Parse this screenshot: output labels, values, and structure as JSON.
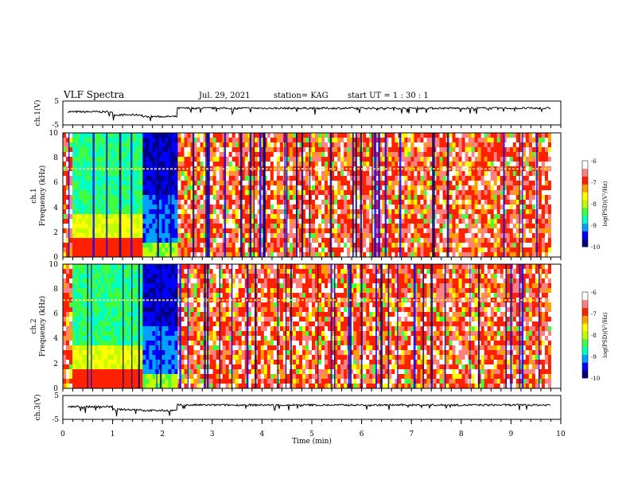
{
  "header": {
    "title": "VLF Spectra",
    "date": "Jul. 29, 2021",
    "station": "station= KAG",
    "start": "start UT =  1 : 30 : 1"
  },
  "chart_data": [
    {
      "type": "line",
      "ylabel": "ch.1(V)",
      "ylim": [
        -5,
        5
      ],
      "y_ticks": [
        "5",
        "-5"
      ],
      "xlim": [
        0,
        10
      ],
      "level_segments": [
        {
          "x": [
            0.1,
            1.0
          ],
          "y": 0.5
        },
        {
          "x": [
            1.0,
            1.6
          ],
          "y": -0.8
        },
        {
          "x": [
            1.6,
            2.3
          ],
          "y": -1.5
        },
        {
          "x": [
            2.3,
            9.8
          ],
          "y": 2.0
        }
      ]
    },
    {
      "type": "heatmap",
      "ylabel": "ch.1\nFrequency (kHz)",
      "ylim": [
        0,
        10
      ],
      "y_ticks": [
        "0",
        "2",
        "4",
        "6",
        "8",
        "10"
      ],
      "xlim": [
        0,
        10
      ]
    },
    {
      "type": "heatmap",
      "ylabel": "ch.2\nFrequency (kHz)",
      "ylim": [
        0,
        10
      ],
      "y_ticks": [
        "0",
        "2",
        "4",
        "6",
        "8",
        "10"
      ],
      "xlim": [
        0,
        10
      ]
    },
    {
      "type": "line",
      "ylabel": "ch.3(V)",
      "ylim": [
        -5,
        5
      ],
      "y_ticks": [
        "5",
        "-5"
      ],
      "xlim": [
        0,
        10
      ],
      "xlabel": "Time (min)",
      "x_ticks": [
        "0",
        "1",
        "2",
        "3",
        "4",
        "5",
        "6",
        "7",
        "8",
        "9",
        "10"
      ],
      "level_segments": [
        {
          "x": [
            0.1,
            1.0
          ],
          "y": 0.3
        },
        {
          "x": [
            1.0,
            1.6
          ],
          "y": -0.9
        },
        {
          "x": [
            1.6,
            2.3
          ],
          "y": -1.3
        },
        {
          "x": [
            2.3,
            9.8
          ],
          "y": 1.0
        }
      ]
    }
  ],
  "colorbar": {
    "label": "log(PSD)(V²/Hz)",
    "range": [
      -10,
      -6
    ],
    "ticks": [
      "-6",
      "-7",
      "-8",
      "-9",
      "-10"
    ],
    "colors": [
      "#000080",
      "#0000ff",
      "#00a0ff",
      "#00ffc0",
      "#40ff40",
      "#c0ff00",
      "#ffff00",
      "#ffa000",
      "#ff2000",
      "#ff8080",
      "#ffffff"
    ]
  },
  "spectrogram": {
    "intense_bands_min": [
      [
        0.2,
        1.6
      ],
      [
        1.6,
        2.3
      ]
    ],
    "interference_line_khz": 7.1,
    "data_end_min": 9.8
  }
}
